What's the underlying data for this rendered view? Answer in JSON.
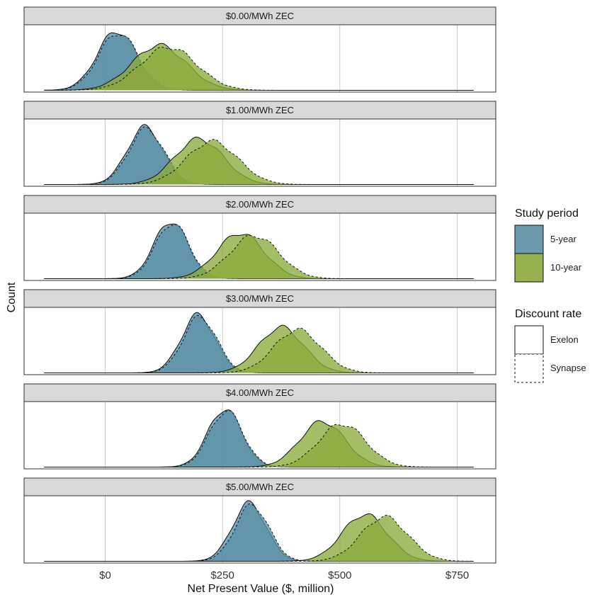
{
  "chart_data": {
    "type": "area",
    "xlabel": "Net Present Value ($, million)",
    "ylabel": "Count",
    "xlim": [
      -150,
      800
    ],
    "x_ticks": [
      {
        "value": 0,
        "label": "$0"
      },
      {
        "value": 250,
        "label": "$250"
      },
      {
        "value": 500,
        "label": "$500"
      },
      {
        "value": 750,
        "label": "$750"
      }
    ],
    "grid": true,
    "legend_position": "right",
    "legend": {
      "study_period": {
        "title": "Study period",
        "items": [
          {
            "key": "5-year",
            "label": "5-year",
            "color": "#5b8fa6"
          },
          {
            "key": "10-year",
            "label": "10-year",
            "color": "#8aaa3c"
          }
        ]
      },
      "discount_rate": {
        "title": "Discount rate",
        "items": [
          {
            "key": "Exelon",
            "label": "Exelon",
            "linetype": "solid"
          },
          {
            "key": "Synapse",
            "label": "Synapse",
            "linetype": "dashed"
          }
        ]
      }
    },
    "colors": {
      "five_year": "#5b8fa6",
      "ten_year": "#8aaa3c",
      "strip_bg": "#d9d9d9",
      "grid": "#bdbdbd"
    },
    "panels": [
      {
        "label": "$0.00/MWh ZEC",
        "series": [
          {
            "period": "5-year",
            "rate": "Exelon",
            "mean": 25,
            "sd": 42,
            "peak": 0.96
          },
          {
            "period": "5-year",
            "rate": "Synapse",
            "mean": 28,
            "sd": 42,
            "peak": 0.93
          },
          {
            "period": "10-year",
            "rate": "Exelon",
            "mean": 115,
            "sd": 58,
            "peak": 0.73
          },
          {
            "period": "10-year",
            "rate": "Synapse",
            "mean": 135,
            "sd": 60,
            "peak": 0.7
          }
        ]
      },
      {
        "label": "$1.00/MWh ZEC",
        "series": [
          {
            "period": "5-year",
            "rate": "Exelon",
            "mean": 85,
            "sd": 38,
            "peak": 0.93
          },
          {
            "period": "5-year",
            "rate": "Synapse",
            "mean": 88,
            "sd": 38,
            "peak": 0.9
          },
          {
            "period": "10-year",
            "rate": "Exelon",
            "mean": 200,
            "sd": 52,
            "peak": 0.74
          },
          {
            "period": "10-year",
            "rate": "Synapse",
            "mean": 228,
            "sd": 55,
            "peak": 0.7
          }
        ]
      },
      {
        "label": "$2.00/MWh ZEC",
        "series": [
          {
            "period": "5-year",
            "rate": "Exelon",
            "mean": 140,
            "sd": 36,
            "peak": 0.93
          },
          {
            "period": "5-year",
            "rate": "Synapse",
            "mean": 143,
            "sd": 36,
            "peak": 0.9
          },
          {
            "period": "10-year",
            "rate": "Exelon",
            "mean": 288,
            "sd": 50,
            "peak": 0.74
          },
          {
            "period": "10-year",
            "rate": "Synapse",
            "mean": 318,
            "sd": 52,
            "peak": 0.7
          }
        ]
      },
      {
        "label": "$3.00/MWh ZEC",
        "series": [
          {
            "period": "5-year",
            "rate": "Exelon",
            "mean": 198,
            "sd": 36,
            "peak": 0.94
          },
          {
            "period": "5-year",
            "rate": "Synapse",
            "mean": 202,
            "sd": 36,
            "peak": 0.91
          },
          {
            "period": "10-year",
            "rate": "Exelon",
            "mean": 375,
            "sd": 48,
            "peak": 0.74
          },
          {
            "period": "10-year",
            "rate": "Synapse",
            "mean": 410,
            "sd": 50,
            "peak": 0.7
          }
        ]
      },
      {
        "label": "$4.00/MWh ZEC",
        "series": [
          {
            "period": "5-year",
            "rate": "Exelon",
            "mean": 255,
            "sd": 36,
            "peak": 0.94
          },
          {
            "period": "5-year",
            "rate": "Synapse",
            "mean": 258,
            "sd": 36,
            "peak": 0.91
          },
          {
            "period": "10-year",
            "rate": "Exelon",
            "mean": 463,
            "sd": 48,
            "peak": 0.74
          },
          {
            "period": "10-year",
            "rate": "Synapse",
            "mean": 505,
            "sd": 50,
            "peak": 0.7
          }
        ]
      },
      {
        "label": "$5.00/MWh ZEC",
        "series": [
          {
            "period": "5-year",
            "rate": "Exelon",
            "mean": 307,
            "sd": 36,
            "peak": 0.94
          },
          {
            "period": "5-year",
            "rate": "Synapse",
            "mean": 313,
            "sd": 36,
            "peak": 0.91
          },
          {
            "period": "10-year",
            "rate": "Exelon",
            "mean": 553,
            "sd": 48,
            "peak": 0.76
          },
          {
            "period": "10-year",
            "rate": "Synapse",
            "mean": 595,
            "sd": 50,
            "peak": 0.72
          }
        ]
      }
    ]
  }
}
